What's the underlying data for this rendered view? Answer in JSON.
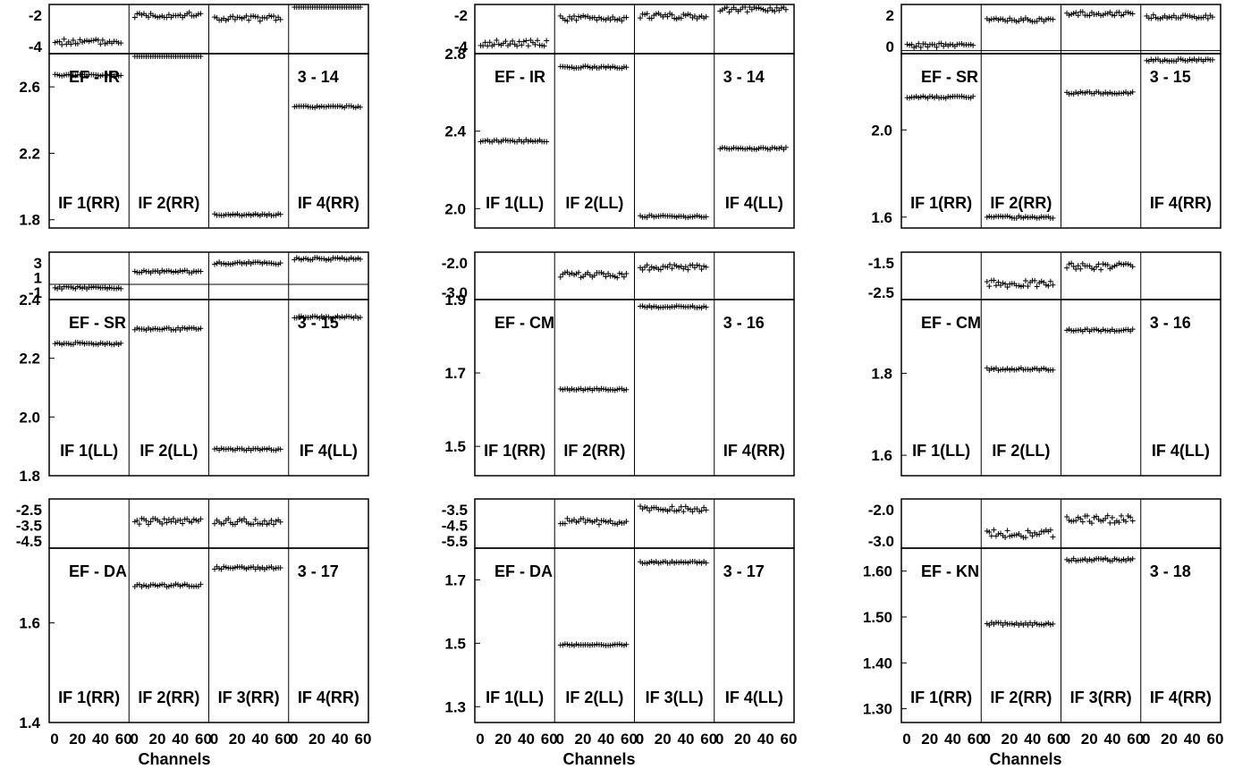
{
  "figure": {
    "xlabel": "Channels"
  },
  "chart_data": [
    {
      "type": "scatter",
      "row": 0,
      "col": 0,
      "baseline": "EF - IR",
      "scan": "3 - 14",
      "phase": {
        "ticks": [
          "-2",
          "-4"
        ],
        "ylim": [
          -4.8,
          -0.6
        ],
        "levels": [
          -3.8,
          -1.5,
          -1.8,
          -0.3
        ],
        "noise": 0.25
      },
      "amp": {
        "ticks": [
          "2.6",
          "2.2",
          "1.8"
        ],
        "tick_values": [
          2.6,
          2.2,
          1.8
        ],
        "ylim": [
          1.75,
          2.8
        ],
        "levels": [
          2.67,
          2.9,
          1.83,
          2.48
        ],
        "noise": 0.006
      },
      "if_labels": [
        "IF 1(RR)",
        "IF 2(RR)",
        "",
        "IF 4(RR)"
      ],
      "x_ticks": []
    },
    {
      "type": "scatter",
      "row": 0,
      "col": 1,
      "baseline": "EF - IR",
      "scan": "3 - 14",
      "phase": {
        "ticks": [
          "-2",
          "-4"
        ],
        "ylim": [
          -4.8,
          -0.6
        ],
        "levels": [
          -3.9,
          -1.8,
          -1.6,
          -1.0
        ],
        "noise": 0.25
      },
      "amp": {
        "ticks": [
          "2.8",
          "2.4",
          "2.0"
        ],
        "tick_values": [
          2.8,
          2.4,
          2.0
        ],
        "ylim": [
          1.9,
          2.8
        ],
        "levels": [
          2.35,
          2.73,
          1.96,
          2.31
        ],
        "noise": 0.006
      },
      "if_labels": [
        "IF 1(LL)",
        "IF 2(LL)",
        "",
        "IF 4(LL)"
      ],
      "x_ticks": []
    },
    {
      "type": "scatter",
      "row": 0,
      "col": 2,
      "baseline": "EF - SR",
      "scan": "3 - 15",
      "phase": {
        "ticks": [
          "2",
          "0"
        ],
        "ylim": [
          -0.3,
          4.5
        ],
        "levels": [
          0.5,
          3.0,
          3.6,
          3.3
        ],
        "noise": 0.2
      },
      "amp": {
        "ticks": [
          "2.0",
          "1.6"
        ],
        "tick_values": [
          2.0,
          1.6
        ],
        "ylim": [
          1.55,
          2.35
        ],
        "levels": [
          2.15,
          1.6,
          2.17,
          2.32
        ],
        "noise": 0.005
      },
      "if_labels": [
        "IF 1(RR)",
        "IF 2(RR)",
        "",
        "IF 4(RR)"
      ],
      "x_ticks": []
    },
    {
      "type": "scatter",
      "row": 1,
      "col": 0,
      "baseline": "EF - SR",
      "scan": "3 - 15",
      "phase": {
        "ticks": [
          "3",
          "1",
          "-1"
        ],
        "ylim": [
          -1.8,
          3.8
        ],
        "levels": [
          -0.4,
          1.5,
          2.5,
          3.0
        ],
        "noise": 0.15
      },
      "amp": {
        "ticks": [
          "2.4",
          "2.2",
          "2.0",
          "1.8"
        ],
        "tick_values": [
          2.4,
          2.2,
          2.0,
          1.8
        ],
        "ylim": [
          1.8,
          2.4
        ],
        "levels": [
          2.25,
          2.3,
          1.89,
          2.34
        ],
        "noise": 0.004
      },
      "if_labels": [
        "IF 1(LL)",
        "IF 2(LL)",
        "",
        "IF 4(LL)"
      ],
      "x_ticks": []
    },
    {
      "type": "scatter",
      "row": 1,
      "col": 1,
      "baseline": "EF - CM",
      "scan": "3 - 16",
      "phase": {
        "ticks": [
          "-2.0",
          "-3.0"
        ],
        "ylim": [
          -3.3,
          -0.8
        ],
        "levels": [
          null,
          -2.0,
          -1.6,
          null
        ],
        "noise": 0.15
      },
      "amp": {
        "ticks": [
          "1.9",
          "1.7",
          "1.5"
        ],
        "tick_values": [
          1.9,
          1.7,
          1.5
        ],
        "ylim": [
          1.42,
          1.9
        ],
        "levels": [
          null,
          1.655,
          1.88,
          null
        ],
        "noise": 0.003
      },
      "if_labels": [
        "IF 1(RR)",
        "IF 2(RR)",
        "",
        "IF 4(RR)"
      ],
      "x_ticks": []
    },
    {
      "type": "scatter",
      "row": 1,
      "col": 2,
      "baseline": "EF - CM",
      "scan": "3 - 16",
      "phase": {
        "ticks": [
          "-1.5",
          "-2.5"
        ],
        "ylim": [
          -2.65,
          -1.0
        ],
        "levels": [
          null,
          -2.1,
          -1.5,
          null
        ],
        "noise": 0.12
      },
      "amp": {
        "ticks": [
          "1.8",
          "1.6"
        ],
        "tick_values": [
          1.8,
          1.6
        ],
        "ylim": [
          1.55,
          1.98
        ],
        "levels": [
          null,
          1.81,
          1.905,
          null
        ],
        "noise": 0.003
      },
      "if_labels": [
        "IF 1(LL)",
        "IF 2(LL)",
        "",
        "IF 4(LL)"
      ],
      "x_ticks": []
    },
    {
      "type": "scatter",
      "row": 2,
      "col": 0,
      "baseline": "EF - DA",
      "scan": "3 - 17",
      "phase": {
        "ticks": [
          "-2.5",
          "-3.5",
          "-4.5"
        ],
        "ylim": [
          -4.6,
          -2.2
        ],
        "levels": [
          null,
          -3.3,
          -3.3,
          null
        ],
        "noise": 0.15
      },
      "amp": {
        "ticks": [
          "1.6",
          "1.4"
        ],
        "tick_values": [
          1.6,
          1.4
        ],
        "ylim": [
          1.4,
          1.75
        ],
        "levels": [
          null,
          1.675,
          1.71,
          null
        ],
        "noise": 0.003
      },
      "if_labels": [
        "IF 1(RR)",
        "IF 2(RR)",
        "IF 3(RR)",
        "IF 4(RR)"
      ],
      "x_ticks": [
        "0",
        "20",
        "40",
        "60"
      ]
    },
    {
      "type": "scatter",
      "row": 2,
      "col": 1,
      "baseline": "EF - DA",
      "scan": "3 - 17",
      "phase": {
        "ticks": [
          "-3.5",
          "-4.5",
          "-5.5"
        ],
        "ylim": [
          -5.6,
          -3.2
        ],
        "levels": [
          null,
          -4.3,
          -3.7,
          null
        ],
        "noise": 0.15
      },
      "amp": {
        "ticks": [
          "1.7",
          "1.5",
          "1.3"
        ],
        "tick_values": [
          1.7,
          1.5,
          1.3
        ],
        "ylim": [
          1.25,
          1.8
        ],
        "levels": [
          null,
          1.495,
          1.755,
          null
        ],
        "noise": 0.003
      },
      "if_labels": [
        "IF 1(LL)",
        "IF 2(LL)",
        "IF 3(LL)",
        "IF 4(LL)"
      ],
      "x_ticks": [
        "0",
        "20",
        "40",
        "60"
      ]
    },
    {
      "type": "scatter",
      "row": 2,
      "col": 2,
      "baseline": "EF - KN",
      "scan": "3 - 18",
      "phase": {
        "ticks": [
          "-2.0",
          "-3.0"
        ],
        "ylim": [
          -3.4,
          -1.0
        ],
        "levels": [
          null,
          -2.7,
          -2.0,
          null
        ],
        "noise": 0.2
      },
      "amp": {
        "ticks": [
          "1.60",
          "1.50",
          "1.40",
          "1.30"
        ],
        "tick_values": [
          1.6,
          1.5,
          1.4,
          1.3
        ],
        "ylim": [
          1.27,
          1.65
        ],
        "levels": [
          null,
          1.485,
          1.625,
          null
        ],
        "noise": 0.003
      },
      "if_labels": [
        "IF 1(RR)",
        "IF 2(RR)",
        "IF 3(RR)",
        "IF 4(RR)"
      ],
      "x_ticks": [
        "0",
        "20",
        "40",
        "60"
      ]
    }
  ]
}
